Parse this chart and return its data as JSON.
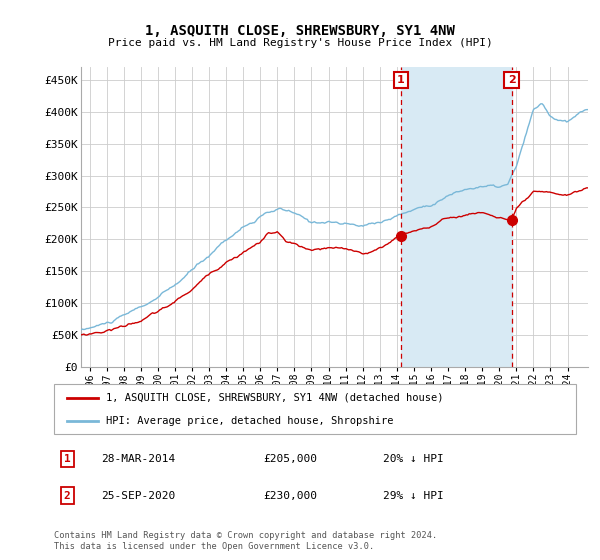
{
  "title": "1, ASQUITH CLOSE, SHREWSBURY, SY1 4NW",
  "subtitle": "Price paid vs. HM Land Registry's House Price Index (HPI)",
  "ylabel_ticks": [
    "£0",
    "£50K",
    "£100K",
    "£150K",
    "£200K",
    "£250K",
    "£300K",
    "£350K",
    "£400K",
    "£450K"
  ],
  "ytick_values": [
    0,
    50000,
    100000,
    150000,
    200000,
    250000,
    300000,
    350000,
    400000,
    450000
  ],
  "ylim": [
    0,
    470000
  ],
  "xlim_start": 1995.5,
  "xlim_end": 2025.2,
  "sale1": {
    "date_x": 2014.24,
    "price": 205000,
    "label": "1",
    "text": "28-MAR-2014",
    "amount": "£205,000",
    "hpi_diff": "20% ↓ HPI"
  },
  "sale2": {
    "date_x": 2020.73,
    "price": 230000,
    "label": "2",
    "text": "25-SEP-2020",
    "amount": "£230,000",
    "hpi_diff": "29% ↓ HPI"
  },
  "legend_line1": "1, ASQUITH CLOSE, SHREWSBURY, SY1 4NW (detached house)",
  "legend_line2": "HPI: Average price, detached house, Shropshire",
  "footer1": "Contains HM Land Registry data © Crown copyright and database right 2024.",
  "footer2": "This data is licensed under the Open Government Licence v3.0.",
  "hpi_color": "#7ab8d8",
  "hpi_fill_color": "#d8eaf4",
  "price_color": "#cc0000",
  "background_color": "#ffffff",
  "grid_color": "#cccccc",
  "xtick_years": [
    1996,
    1997,
    1998,
    1999,
    2000,
    2001,
    2002,
    2003,
    2004,
    2005,
    2006,
    2007,
    2008,
    2009,
    2010,
    2011,
    2012,
    2013,
    2014,
    2015,
    2016,
    2017,
    2018,
    2019,
    2020,
    2021,
    2022,
    2023,
    2024
  ]
}
